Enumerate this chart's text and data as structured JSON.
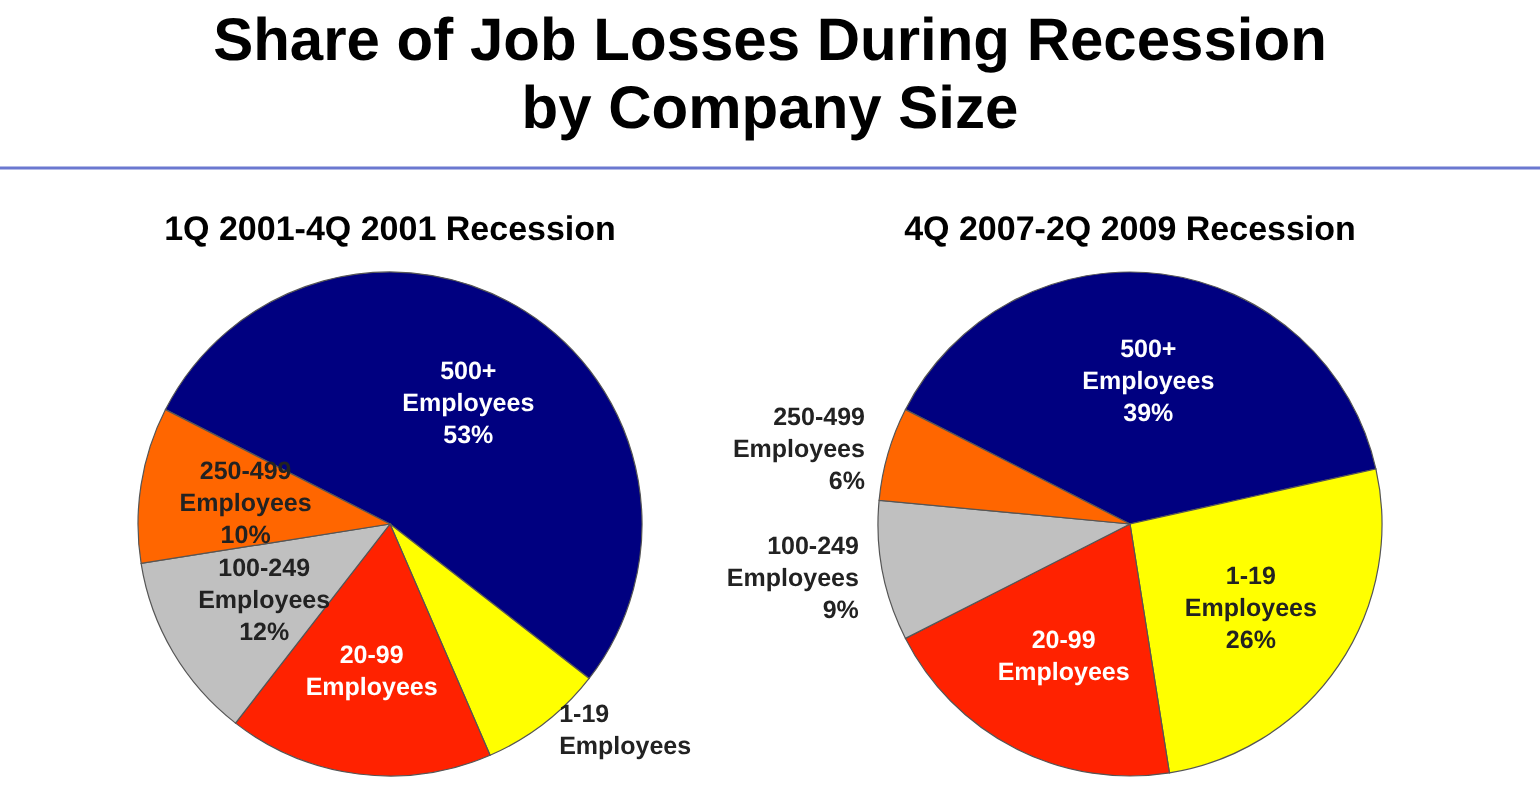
{
  "chart_data": [
    {
      "type": "pie",
      "title": "Share of Job Losses During Recession\nby Company Size",
      "subtitle": "1Q 2001-4Q 2001 Recession",
      "categories": [
        "500+ Employees",
        "1-19 Employees",
        "20-99 Employees",
        "100-249 Employees",
        "250-499 Employees"
      ],
      "values": [
        53,
        8,
        17,
        12,
        10
      ],
      "value_labels": [
        "53%",
        null,
        null,
        "12%",
        "10%"
      ],
      "colors": [
        "#000080",
        "#ffff00",
        "#ff2200",
        "#c0c0c0",
        "#ff6600"
      ]
    },
    {
      "type": "pie",
      "subtitle": "4Q 2007-2Q 2009 Recession",
      "categories": [
        "500+ Employees",
        "1-19 Employees",
        "20-99 Employees",
        "100-249 Employees",
        "250-499 Employees"
      ],
      "values": [
        39,
        26,
        20,
        9,
        6
      ],
      "value_labels": [
        "39%",
        "26%",
        null,
        "9%",
        "6%"
      ],
      "colors": [
        "#000080",
        "#ffff00",
        "#ff2200",
        "#c0c0c0",
        "#ff6600"
      ]
    }
  ]
}
